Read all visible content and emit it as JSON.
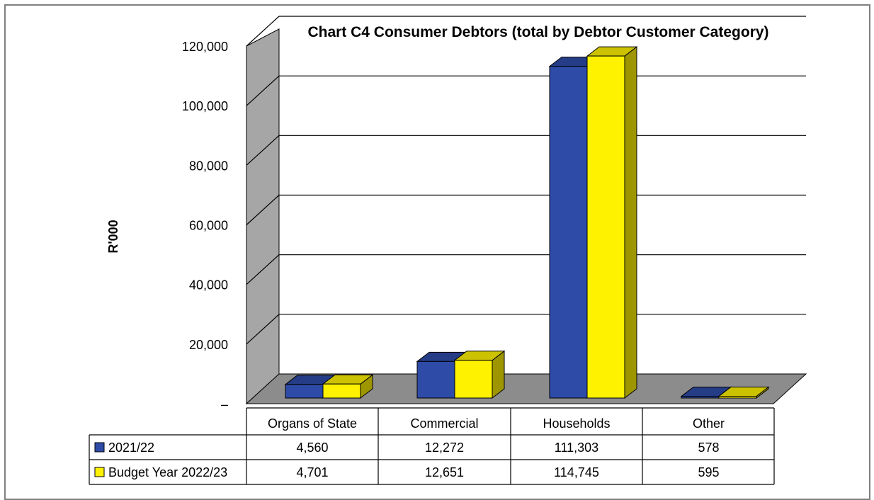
{
  "chart_data": {
    "type": "bar",
    "title": "Chart C4 Consumer Debtors (total by Debtor Customer Category)",
    "ylabel": "R'000",
    "xlabel": "",
    "categories": [
      "Organs of State",
      "Commercial",
      "Households",
      "Other"
    ],
    "series": [
      {
        "name": "2021/22",
        "values": [
          4560,
          12272,
          111303,
          578
        ],
        "labels": [
          "4,560",
          "12,272",
          "111,303",
          "578"
        ],
        "color": "#2E4BA8"
      },
      {
        "name": "Budget Year 2022/23",
        "values": [
          4701,
          12651,
          114745,
          595
        ],
        "labels": [
          "4,701",
          "12,651",
          "114,745",
          "595"
        ],
        "color": "#FFF200"
      }
    ],
    "ylim": [
      0,
      120000
    ],
    "yticks": [
      0,
      20000,
      40000,
      60000,
      80000,
      100000,
      120000
    ],
    "ytick_labels": [
      "–",
      "20,000",
      "40,000",
      "60,000",
      "80,000",
      "100,000",
      "120,000"
    ],
    "grid": true,
    "legend": "data table below chart",
    "data_table": true
  }
}
